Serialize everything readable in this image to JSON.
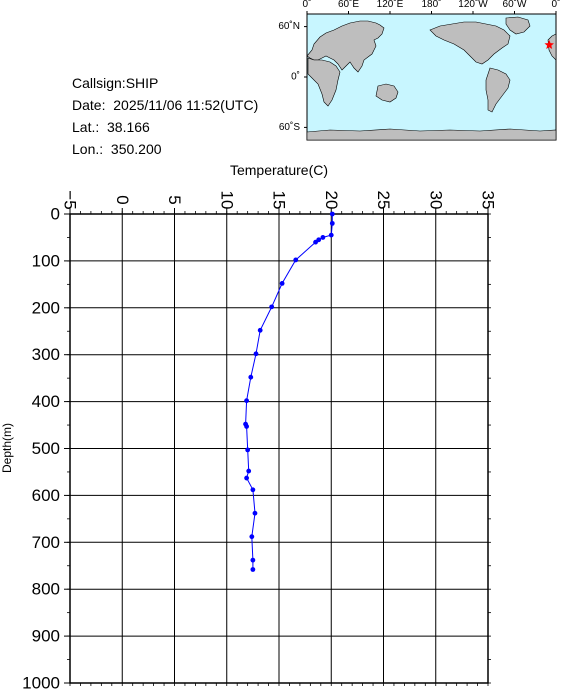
{
  "info": {
    "callsign": "Callsign:SHIP",
    "date": "Date:  2025/11/06 11:52(UTC)",
    "lat": "Lat.:  38.166",
    "lon": "Lon.:  350.200"
  },
  "map": {
    "top_ticks": [
      "0˚",
      "60˚E",
      "120˚E",
      "180˚",
      "120˚W",
      "60˚W",
      "0˚"
    ],
    "left_ticks": [
      "60˚N",
      "0˚",
      "60˚S"
    ],
    "marker": {
      "lat": 38.166,
      "lon": 350.2
    },
    "colors": {
      "ocean": "#c8f6ff",
      "land": "#bebebe",
      "marker": "#ff0000"
    }
  },
  "chart_data": {
    "type": "line",
    "xlabel": "Temperature(C)",
    "ylabel": "Depth(m)",
    "xlim": [
      -5,
      35
    ],
    "ylim": [
      0,
      1000
    ],
    "y_inverted": true,
    "x_tick_labels": [
      "−5",
      "0",
      "5",
      "10",
      "15",
      "20",
      "25",
      "30",
      "35"
    ],
    "y_tick_labels": [
      "0",
      "100",
      "200",
      "300",
      "400",
      "500",
      "600",
      "700",
      "800",
      "900",
      "1000"
    ],
    "grid": true,
    "color": "#0000ff",
    "series": [
      {
        "x": [
          20.1,
          20.1,
          20.0,
          19.2,
          18.8,
          18.5,
          16.6,
          15.3,
          14.3,
          13.2,
          12.8,
          12.3,
          11.9,
          11.8,
          11.9,
          12.0,
          12.1,
          11.9,
          12.5,
          12.7,
          12.4,
          12.5,
          12.5
        ],
        "y": [
          0,
          20,
          45,
          50,
          55,
          60,
          98,
          148,
          198,
          248,
          298,
          348,
          398,
          448,
          453,
          503,
          548,
          563,
          588,
          638,
          688,
          738,
          758
        ]
      }
    ]
  }
}
